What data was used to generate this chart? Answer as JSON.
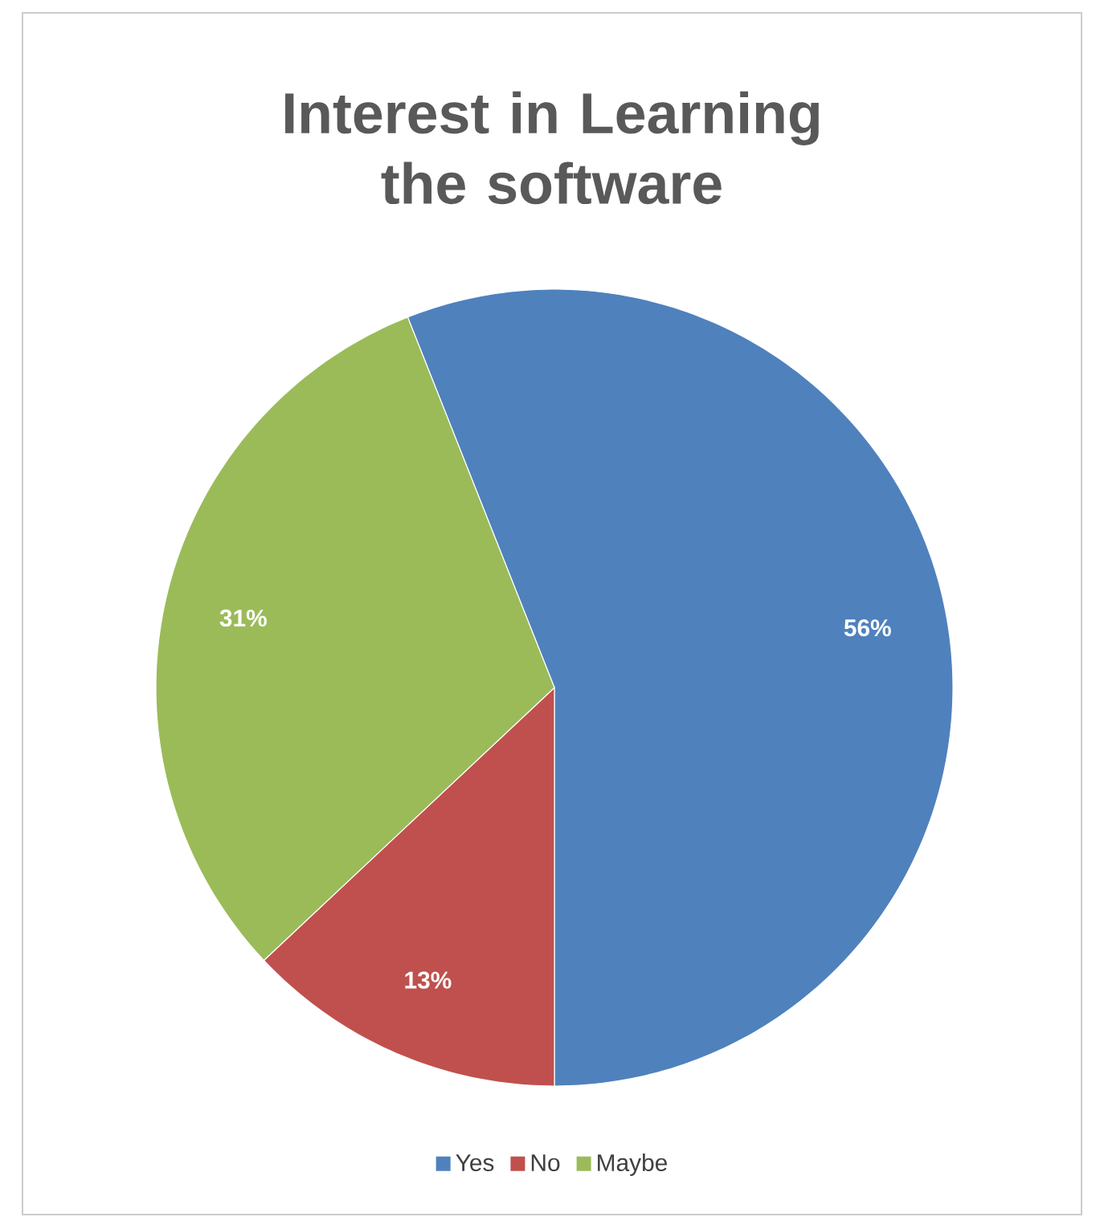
{
  "chart_data": {
    "type": "pie",
    "title": "Interest in Learning the software",
    "categories": [
      "Yes",
      "No",
      "Maybe"
    ],
    "values": [
      56,
      13,
      31
    ],
    "colors": [
      "#4f81bd",
      "#c0504d",
      "#9bbb59"
    ],
    "value_labels": [
      "56%",
      "13%",
      "31%"
    ],
    "legend": "bottom"
  }
}
